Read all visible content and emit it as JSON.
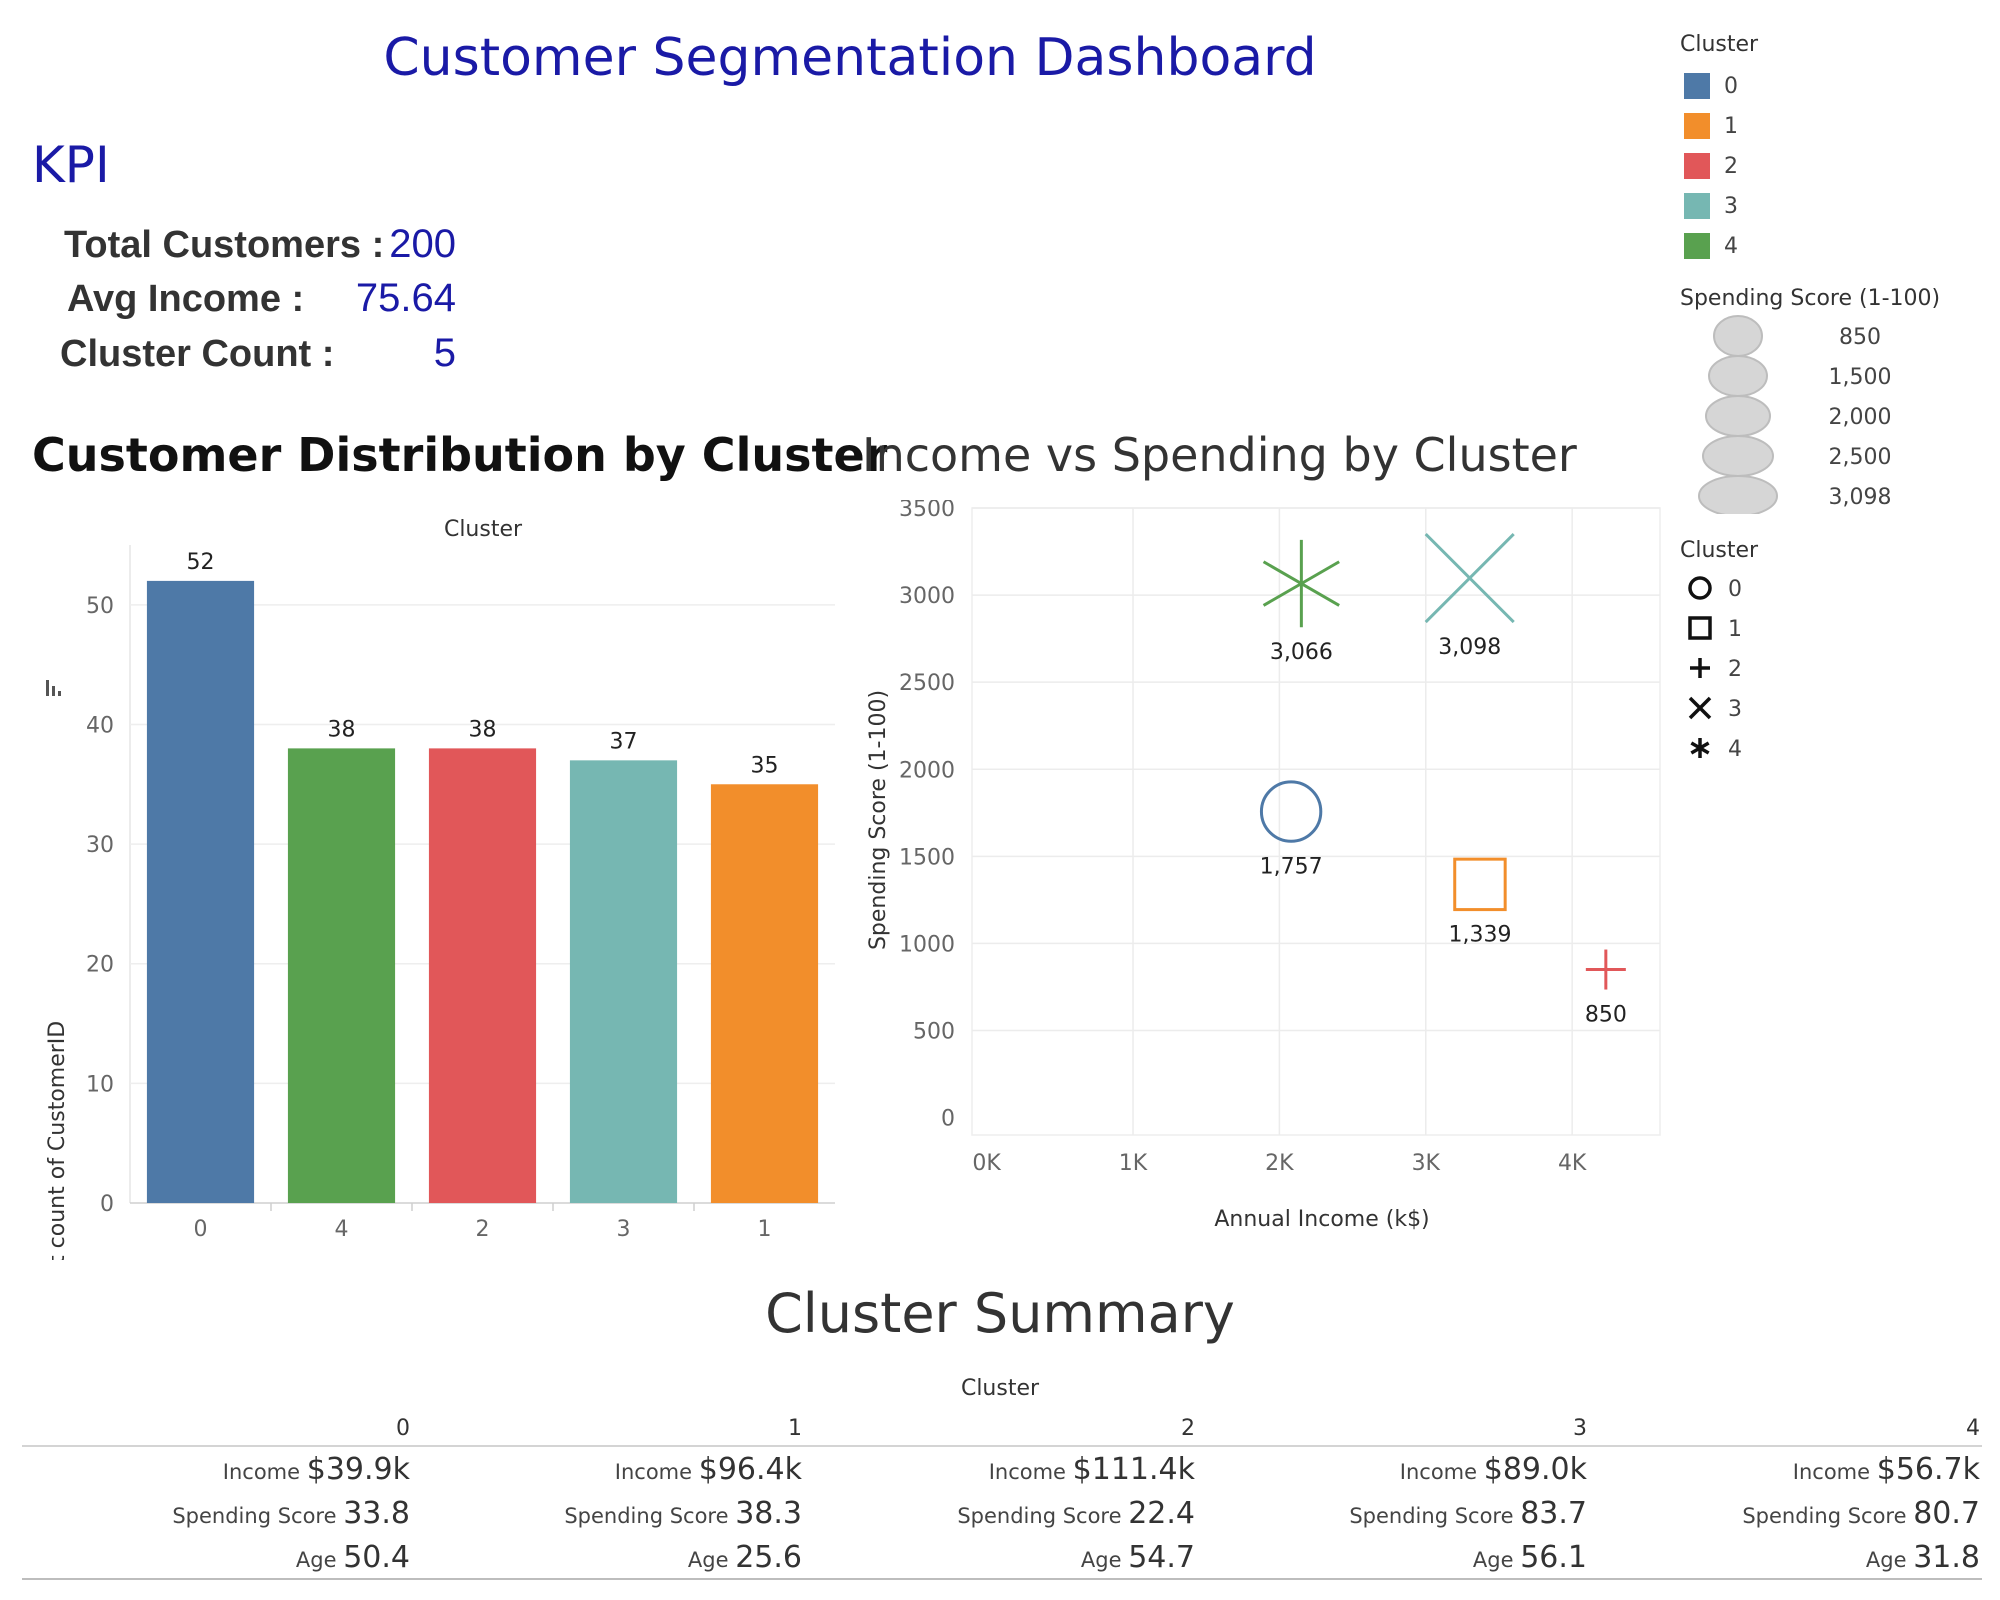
{
  "dashboard": {
    "title": "Customer Segmentation Dashboard"
  },
  "kpi": {
    "heading": "KPI",
    "items": [
      {
        "label": "Total Customers :",
        "value": "200"
      },
      {
        "label": "Avg Income :",
        "value": "75.64"
      },
      {
        "label": "Cluster Count :",
        "value": "5"
      }
    ]
  },
  "bar_chart": {
    "title": "Customer Distribution by Cluster",
    "header": "Cluster",
    "y_axis_label": "Distinct count of CustomerID"
  },
  "scatter_chart": {
    "title": "Income vs Spending by Cluster",
    "x_axis_label": "Annual Income (k$)",
    "y_axis_label": "Spending Score (1-100)"
  },
  "legends": {
    "color_title": "Cluster",
    "color_items": [
      {
        "label": "0",
        "color": "#4e79a7"
      },
      {
        "label": "1",
        "color": "#f28e2b"
      },
      {
        "label": "2",
        "color": "#e15759"
      },
      {
        "label": "3",
        "color": "#76b7b2"
      },
      {
        "label": "4",
        "color": "#59a14f"
      }
    ],
    "size_title": "Spending Score (1-100)",
    "size_items": [
      "850",
      "1,500",
      "2,000",
      "2,500",
      "3,098"
    ],
    "shape_title": "Cluster",
    "shape_items": [
      {
        "label": "0",
        "shape": "circle-icon"
      },
      {
        "label": "1",
        "shape": "square-icon"
      },
      {
        "label": "2",
        "shape": "plus-icon"
      },
      {
        "label": "3",
        "shape": "cross-icon"
      },
      {
        "label": "4",
        "shape": "asterisk-icon"
      }
    ]
  },
  "summary": {
    "title": "Cluster Summary",
    "header": "Cluster",
    "columns": [
      {
        "cluster": "0",
        "income_label": "Income",
        "income": "$39.9k",
        "spending_label": "Spending Score",
        "spending": "33.8",
        "age_label": "Age",
        "age": "50.4"
      },
      {
        "cluster": "1",
        "income_label": "Income",
        "income": "$96.4k",
        "spending_label": "Spending Score",
        "spending": "38.3",
        "age_label": "Age",
        "age": "25.6"
      },
      {
        "cluster": "2",
        "income_label": "Income",
        "income": "$111.4k",
        "spending_label": "Spending Score",
        "spending": "22.4",
        "age_label": "Age",
        "age": "54.7"
      },
      {
        "cluster": "3",
        "income_label": "Income",
        "income": "$89.0k",
        "spending_label": "Spending Score",
        "spending": "83.7",
        "age_label": "Age",
        "age": "56.1"
      },
      {
        "cluster": "4",
        "income_label": "Income",
        "income": "$56.7k",
        "spending_label": "Spending Score",
        "spending": "80.7",
        "age_label": "Age",
        "age": "31.8"
      }
    ]
  },
  "chart_data": [
    {
      "type": "bar",
      "title": "Customer Distribution by Cluster",
      "xlabel": "Cluster",
      "ylabel": "Distinct count of CustomerID",
      "categories": [
        "0",
        "4",
        "2",
        "3",
        "1"
      ],
      "values": [
        52,
        38,
        38,
        37,
        35
      ],
      "colors": [
        "#4e79a7",
        "#59a14f",
        "#e15759",
        "#76b7b2",
        "#f28e2b"
      ],
      "data_labels": [
        "52",
        "38",
        "38",
        "37",
        "35"
      ],
      "yticks": [
        0,
        10,
        20,
        30,
        40,
        50
      ],
      "ylim": [
        0,
        55
      ],
      "grid": true
    },
    {
      "type": "scatter",
      "title": "Income vs Spending by Cluster",
      "xlabel": "Annual Income (k$)",
      "ylabel": "Spending Score (1-100)",
      "xticks": [
        "0K",
        "1K",
        "2K",
        "3K",
        "4K"
      ],
      "xtick_values": [
        0,
        1000,
        2000,
        3000,
        4000
      ],
      "yticks": [
        0,
        500,
        1000,
        1500,
        2000,
        2500,
        3000,
        3500
      ],
      "xlim": [
        -100,
        4600
      ],
      "ylim": [
        -100,
        3500
      ],
      "grid": true,
      "points": [
        {
          "cluster": "0",
          "x": 2080,
          "y": 1757,
          "label": "1,757",
          "shape": "circle",
          "color": "#4e79a7"
        },
        {
          "cluster": "1",
          "x": 3370,
          "y": 1339,
          "label": "1,339",
          "shape": "square",
          "color": "#f28e2b"
        },
        {
          "cluster": "2",
          "x": 4230,
          "y": 850,
          "label": "850",
          "shape": "plus",
          "color": "#e15759"
        },
        {
          "cluster": "3",
          "x": 3300,
          "y": 3098,
          "label": "3,098",
          "shape": "cross",
          "color": "#76b7b2"
        },
        {
          "cluster": "4",
          "x": 2150,
          "y": 3066,
          "label": "3,066",
          "shape": "asterisk",
          "color": "#59a14f"
        }
      ]
    }
  ]
}
